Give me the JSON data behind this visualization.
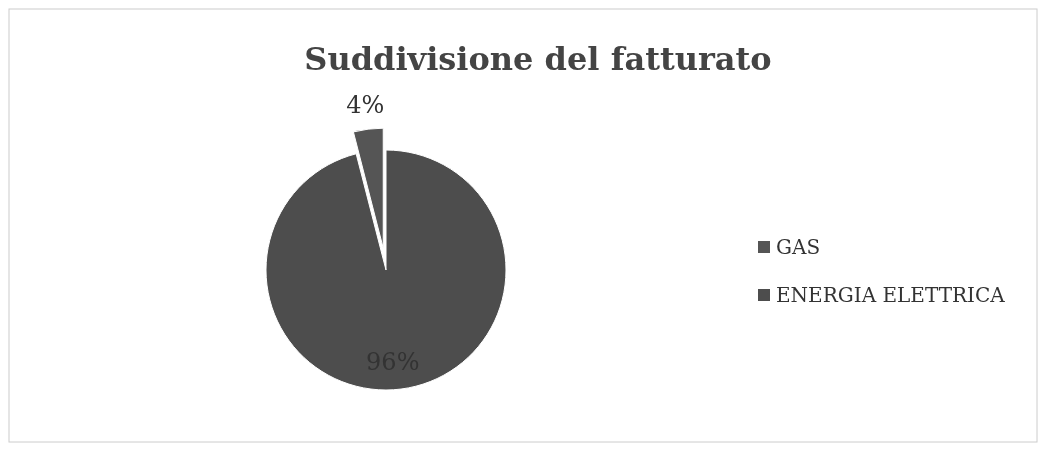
{
  "chart_data": {
    "type": "pie",
    "title": "Suddivisione del fatturato",
    "categories": [
      "GAS",
      "ENERGIA ELETTRICA"
    ],
    "values": [
      4,
      96
    ],
    "colors": [
      "#555555",
      "#4d4d4d"
    ],
    "value_labels": [
      "4%",
      "96%"
    ],
    "legend": "right"
  }
}
